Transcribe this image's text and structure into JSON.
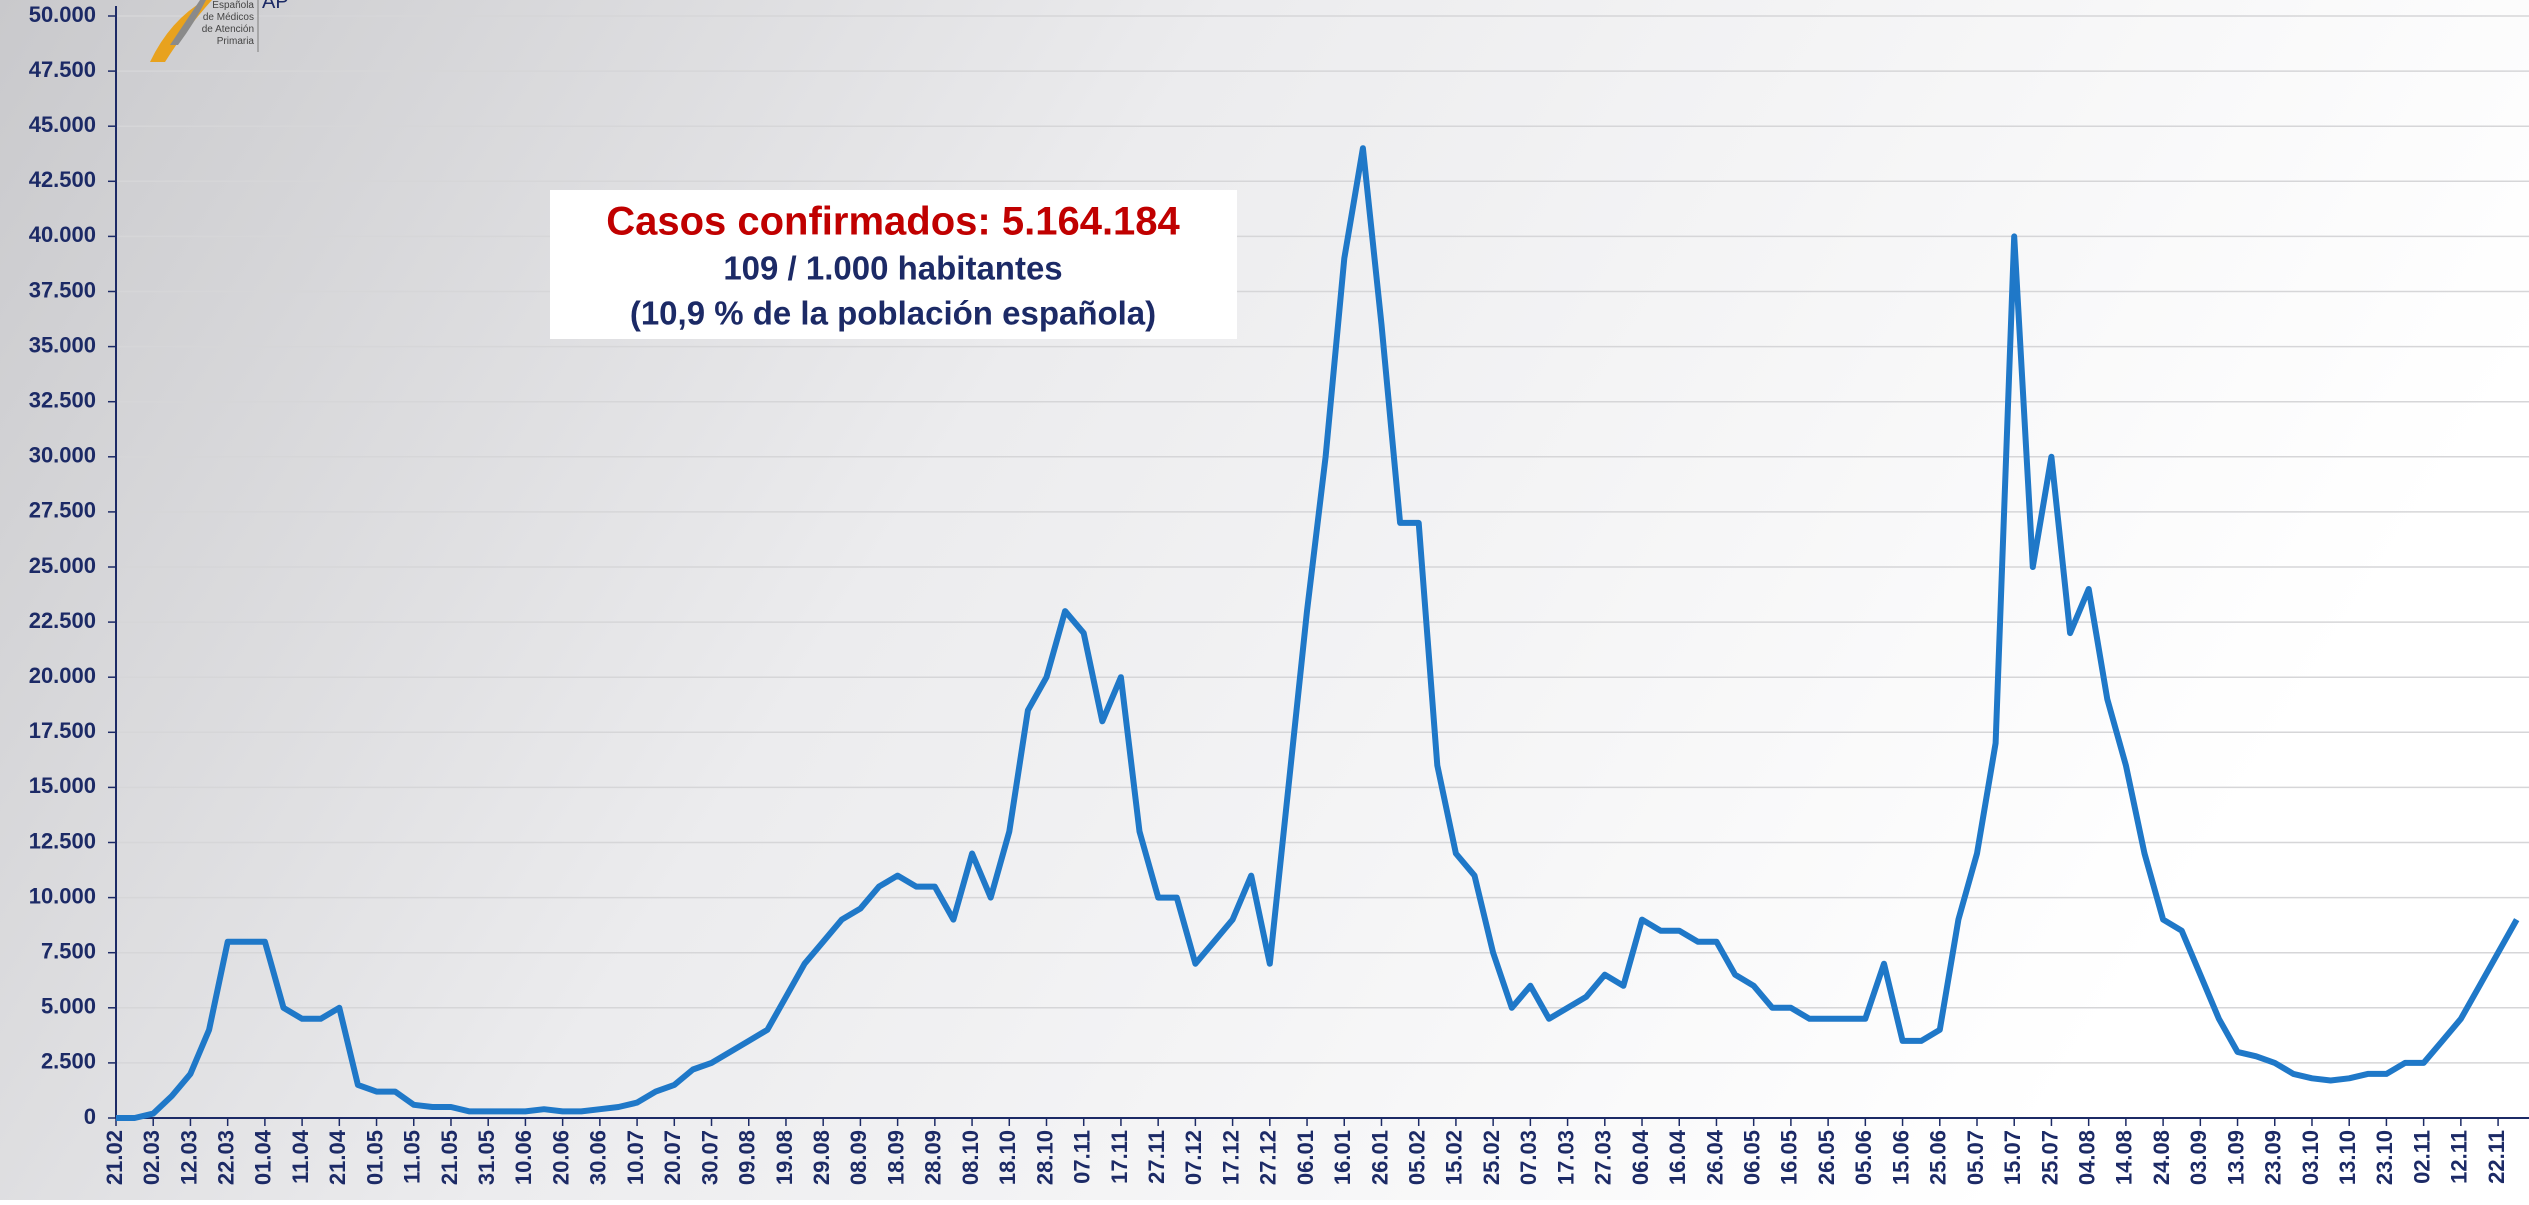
{
  "chart_data": {
    "type": "line",
    "annotation": {
      "title": "Casos confirmados: 5.164.184",
      "line1": "109 / 1.000 habitantes",
      "line2": "(10,9 % de la población española)"
    },
    "logo": {
      "lines": [
        "Española",
        "de Médicos",
        "de Atención",
        "Primaria"
      ],
      "abbr": "AP"
    },
    "categories": [
      "21.02",
      null,
      "02.03",
      null,
      "12.03",
      null,
      "22.03",
      null,
      "01.04",
      null,
      "11.04",
      null,
      "21.04",
      null,
      "01.05",
      null,
      "11.05",
      null,
      "21.05",
      null,
      "31.05",
      null,
      "10.06",
      null,
      "20.06",
      null,
      "30.06",
      null,
      "10.07",
      null,
      "20.07",
      null,
      "30.07",
      null,
      "09.08",
      null,
      "19.08",
      null,
      "29.08",
      null,
      "08.09",
      null,
      "18.09",
      null,
      "28.09",
      null,
      "08.10",
      null,
      "18.10",
      null,
      "28.10",
      null,
      "07.11",
      null,
      "17.11",
      null,
      "27.11",
      null,
      "07.12",
      null,
      "17.12",
      null,
      "27.12",
      null,
      "06.01",
      null,
      "16.01",
      null,
      "26.01",
      null,
      "05.02",
      null,
      "15.02",
      null,
      "25.02",
      null,
      "07.03",
      null,
      "17.03",
      null,
      "27.03",
      null,
      "06.04",
      null,
      "16.04",
      null,
      "26.04",
      null,
      "06.05",
      null,
      "16.05",
      null,
      "26.05",
      null,
      "05.06",
      null,
      "15.06",
      null,
      "25.06",
      null,
      "05.07",
      null,
      "15.07",
      null,
      "25.07",
      null,
      "04.08",
      null,
      "14.08",
      null,
      "24.08",
      null,
      "03.09",
      null,
      "13.09",
      null,
      "23.09",
      null,
      "03.10",
      null,
      "13.10",
      null,
      "23.10",
      null,
      "02.11",
      null,
      "12.11",
      null,
      "22.11",
      null
    ],
    "series": [
      {
        "name": "Casos",
        "color": "#1f78c8",
        "values": [
          0,
          0,
          200,
          1000,
          2000,
          4000,
          8000,
          8000,
          8000,
          5000,
          4500,
          4500,
          5000,
          1500,
          1200,
          1200,
          600,
          500,
          500,
          300,
          300,
          300,
          300,
          400,
          300,
          300,
          400,
          500,
          700,
          1200,
          1500,
          2200,
          2500,
          3000,
          3500,
          4000,
          5500,
          7000,
          8000,
          9000,
          9500,
          10500,
          11000,
          10500,
          10500,
          9000,
          12000,
          10000,
          13000,
          18500,
          20000,
          23000,
          22000,
          18000,
          20000,
          13000,
          10000,
          10000,
          7000,
          8000,
          9000,
          11000,
          7000,
          15000,
          23000,
          30000,
          39000,
          44000,
          36000,
          27000,
          27000,
          16000,
          12000,
          11000,
          7500,
          5000,
          6000,
          4500,
          5000,
          5500,
          6500,
          6000,
          9000,
          8500,
          8500,
          8000,
          8000,
          6500,
          6000,
          5000,
          5000,
          4500,
          4500,
          4500,
          4500,
          7000,
          3500,
          3500,
          4000,
          9000,
          12000,
          17000,
          40000,
          25000,
          30000,
          22000,
          24000,
          19000,
          16000,
          12000,
          9000,
          8500,
          6500,
          4500,
          3000,
          2800,
          2500,
          2000,
          1800,
          1700,
          1800,
          2000,
          2000,
          2500,
          2500,
          3500,
          4500,
          6000,
          7500,
          9000
        ]
      }
    ],
    "ylim": [
      0,
      50000
    ],
    "yticks": [
      0,
      {
        "value": 2500,
        "label": "2.500"
      },
      {
        "value": 5000,
        "label": "5.000"
      },
      {
        "value": 7500,
        "label": "7.500"
      },
      {
        "value": 10000,
        "label": "10.000"
      },
      {
        "value": 12500,
        "label": "12.500"
      },
      {
        "value": 15000,
        "label": "15.000"
      },
      {
        "value": 17500,
        "label": "17.500"
      },
      {
        "value": 20000,
        "label": "20.000"
      },
      {
        "value": 22500,
        "label": "22.500"
      },
      {
        "value": 25000,
        "label": "25.000"
      },
      {
        "value": 27500,
        "label": "27.500"
      },
      {
        "value": 30000,
        "label": "30.000"
      },
      {
        "value": 32500,
        "label": "32.500"
      },
      {
        "value": 35000,
        "label": "35.000"
      },
      {
        "value": 37500,
        "label": "37.500"
      },
      {
        "value": 40000,
        "label": "40.000"
      },
      {
        "value": 42500,
        "label": "42.500"
      },
      {
        "value": 45000,
        "label": "45.000"
      },
      {
        "value": 47500,
        "label": "47.500"
      },
      {
        "value": 50000,
        "label": "50.000"
      }
    ],
    "grid": true
  }
}
